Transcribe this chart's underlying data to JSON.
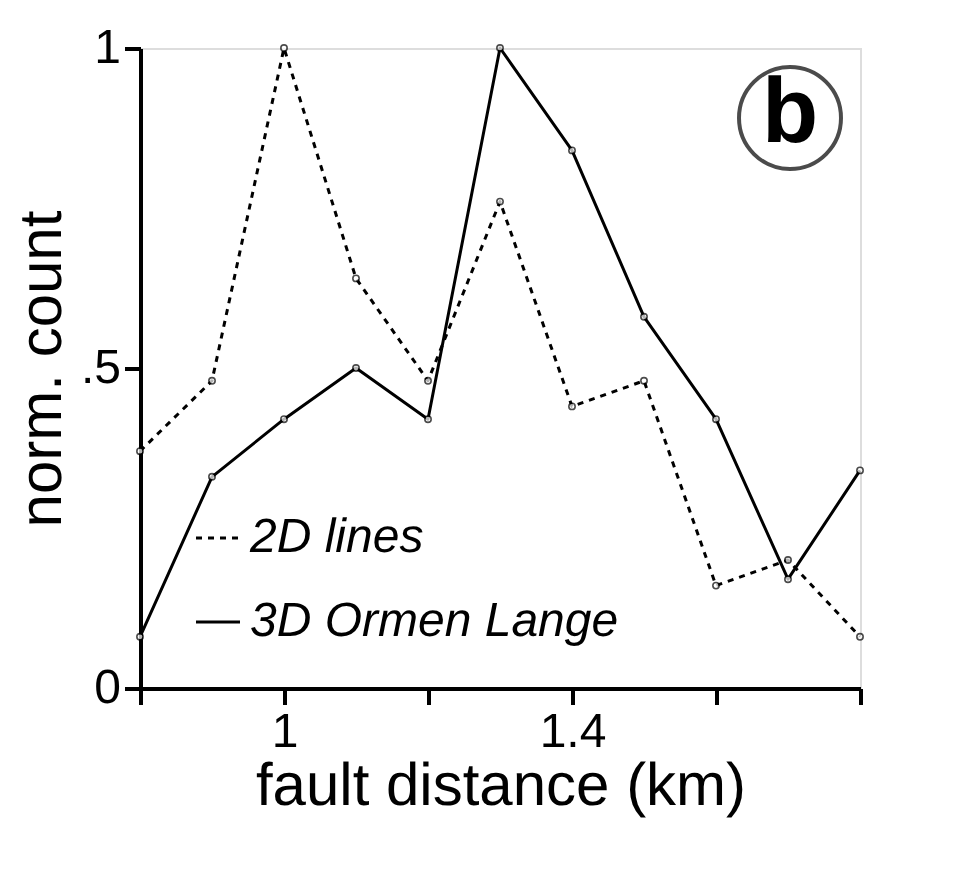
{
  "chart_data": {
    "type": "line",
    "xlabel": "fault distance (km)",
    "ylabel": "norm. count",
    "x": [
      0.8,
      0.9,
      1.0,
      1.1,
      1.2,
      1.3,
      1.4,
      1.5,
      1.6,
      1.7,
      1.8
    ],
    "series": [
      {
        "name": "2D lines",
        "color": "#000000",
        "line_style": "dotted",
        "values": [
          0.37,
          0.48,
          1.0,
          0.64,
          0.48,
          0.76,
          0.44,
          0.48,
          0.16,
          0.2,
          0.08
        ]
      },
      {
        "name": "3D Ormen Lange",
        "color": "#000000",
        "line_style": "solid",
        "values": [
          0.08,
          0.33,
          0.42,
          0.5,
          0.42,
          1.0,
          0.84,
          0.58,
          0.42,
          0.17,
          0.34
        ]
      }
    ],
    "xlim": [
      0.8,
      1.8
    ],
    "ylim": [
      0,
      1
    ],
    "xticks": [
      {
        "value": 0.8,
        "label": null
      },
      1,
      {
        "value": 1.2,
        "label": null
      },
      1.4,
      {
        "value": 1.6,
        "label": null
      },
      {
        "value": 1.8,
        "label": null
      }
    ],
    "yticks": [
      0,
      {
        "value": 0.5,
        "label": ".5"
      },
      1
    ],
    "annotations": [
      "b"
    ],
    "marker": "circle",
    "grid": false,
    "legend": "bottom"
  }
}
